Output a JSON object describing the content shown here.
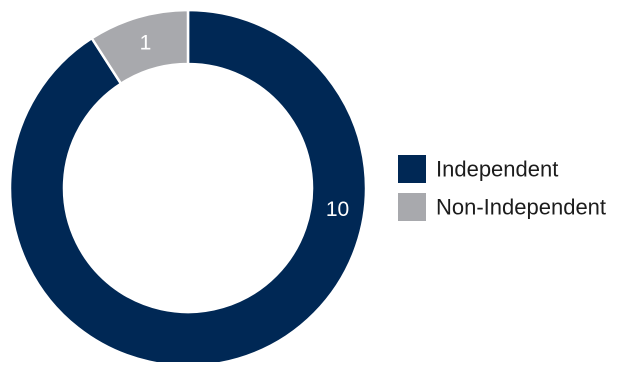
{
  "chart_data": {
    "type": "pie",
    "variant": "donut",
    "categories": [
      "Independent",
      "Non-Independent"
    ],
    "values": [
      10,
      1
    ],
    "colors": [
      "#002855",
      "#a8a9ad"
    ],
    "title": "",
    "legend": {
      "placement": "right",
      "entries": [
        "Independent",
        "Non-Independent"
      ]
    }
  }
}
